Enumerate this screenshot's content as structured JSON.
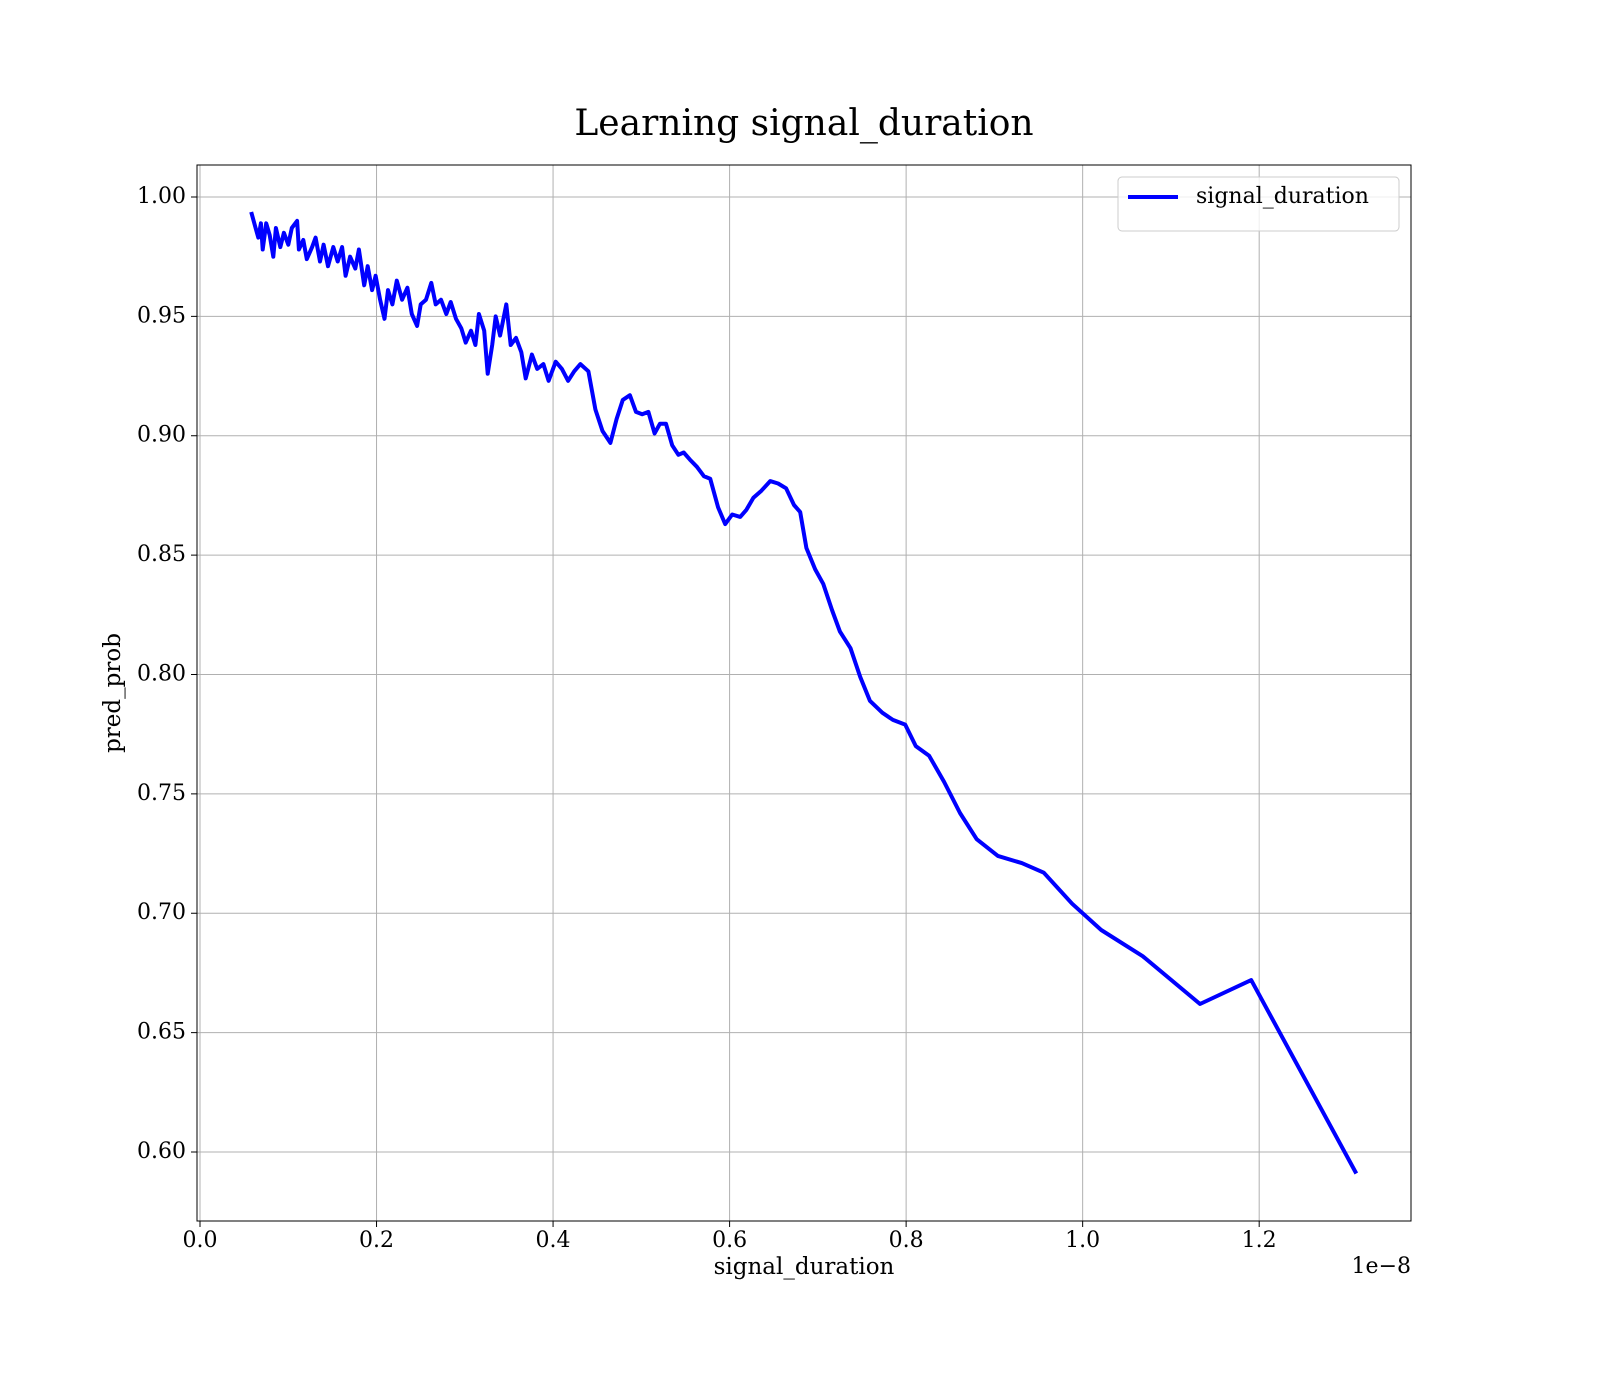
{
  "chart_data": {
    "type": "line",
    "title": "Learning signal_duration",
    "xlabel": "signal_duration",
    "ylabel": "pred_prob",
    "x_offset_label": "1e−8",
    "grid": true,
    "legend": "upper right",
    "xlim": [
      -0.0034,
      1.372
    ],
    "ylim": [
      0.5711,
      1.0134
    ],
    "xticks": [
      {
        "value": 0,
        "label": "0.0"
      },
      0.2,
      0.4,
      0.6,
      0.8,
      {
        "value": 1,
        "label": "1.0"
      },
      1.2
    ],
    "yticks": [
      {
        "value": 0.6,
        "label": "0.60"
      },
      0.65,
      {
        "value": 0.7,
        "label": "0.70"
      },
      0.75,
      {
        "value": 0.8,
        "label": "0.80"
      },
      0.85,
      {
        "value": 0.9,
        "label": "0.90"
      },
      0.95,
      {
        "value": 1,
        "label": "1.00"
      }
    ],
    "x": [
      0.058,
      0.063,
      0.066,
      0.069,
      0.071,
      0.075,
      0.079,
      0.083,
      0.086,
      0.091,
      0.095,
      0.1,
      0.104,
      0.11,
      0.112,
      0.117,
      0.121,
      0.127,
      0.131,
      0.136,
      0.14,
      0.145,
      0.151,
      0.156,
      0.161,
      0.165,
      0.17,
      0.176,
      0.18,
      0.186,
      0.19,
      0.195,
      0.199,
      0.204,
      0.209,
      0.213,
      0.218,
      0.223,
      0.229,
      0.235,
      0.24,
      0.246,
      0.25,
      0.256,
      0.262,
      0.267,
      0.273,
      0.279,
      0.284,
      0.29,
      0.296,
      0.301,
      0.307,
      0.312,
      0.316,
      0.322,
      0.326,
      0.331,
      0.335,
      0.34,
      0.347,
      0.352,
      0.358,
      0.364,
      0.369,
      0.376,
      0.382,
      0.389,
      0.395,
      0.403,
      0.41,
      0.417,
      0.424,
      0.431,
      0.44,
      0.448,
      0.456,
      0.465,
      0.472,
      0.479,
      0.487,
      0.494,
      0.501,
      0.508,
      0.515,
      0.521,
      0.528,
      0.535,
      0.542,
      0.548,
      0.555,
      0.563,
      0.571,
      0.578,
      0.587,
      0.595,
      0.603,
      0.612,
      0.619,
      0.627,
      0.636,
      0.646,
      0.655,
      0.664,
      0.673,
      0.68,
      0.687,
      0.697,
      0.706,
      0.716,
      0.725,
      0.737,
      0.748,
      0.759,
      0.773,
      0.785,
      0.799,
      0.811,
      0.826,
      0.843,
      0.861,
      0.88,
      0.904,
      0.931,
      0.956,
      0.988,
      1.021,
      1.068,
      1.133,
      1.191,
      1.31
    ],
    "series": [
      {
        "name": "signal_duration",
        "color": "#0000ff",
        "values": [
          0.9937,
          0.987,
          0.983,
          0.989,
          0.978,
          0.989,
          0.984,
          0.975,
          0.987,
          0.979,
          0.985,
          0.98,
          0.987,
          0.99,
          0.978,
          0.982,
          0.974,
          0.979,
          0.983,
          0.973,
          0.98,
          0.971,
          0.979,
          0.973,
          0.979,
          0.967,
          0.975,
          0.97,
          0.978,
          0.963,
          0.971,
          0.961,
          0.967,
          0.957,
          0.949,
          0.961,
          0.955,
          0.965,
          0.957,
          0.962,
          0.951,
          0.946,
          0.955,
          0.957,
          0.964,
          0.955,
          0.957,
          0.951,
          0.956,
          0.949,
          0.945,
          0.939,
          0.944,
          0.938,
          0.951,
          0.944,
          0.926,
          0.938,
          0.95,
          0.942,
          0.955,
          0.938,
          0.941,
          0.935,
          0.924,
          0.934,
          0.928,
          0.93,
          0.923,
          0.931,
          0.928,
          0.923,
          0.927,
          0.93,
          0.927,
          0.911,
          0.902,
          0.897,
          0.907,
          0.915,
          0.917,
          0.91,
          0.909,
          0.91,
          0.901,
          0.905,
          0.905,
          0.896,
          0.892,
          0.893,
          0.89,
          0.887,
          0.883,
          0.882,
          0.87,
          0.863,
          0.867,
          0.866,
          0.869,
          0.874,
          0.877,
          0.881,
          0.88,
          0.878,
          0.871,
          0.868,
          0.853,
          0.844,
          0.838,
          0.827,
          0.818,
          0.811,
          0.799,
          0.789,
          0.784,
          0.781,
          0.779,
          0.77,
          0.766,
          0.755,
          0.742,
          0.731,
          0.724,
          0.721,
          0.717,
          0.704,
          0.693,
          0.682,
          0.662,
          0.672,
          0.591
        ]
      }
    ]
  }
}
